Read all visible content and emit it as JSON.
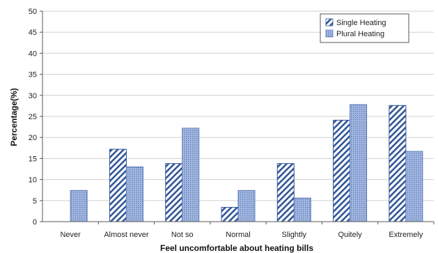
{
  "chart_data": {
    "type": "bar",
    "categories": [
      "Never",
      "Almost never",
      "Not so",
      "Normal",
      "Slightly",
      "Quitely",
      "Extremely"
    ],
    "series": [
      {
        "name": "Single Heating",
        "values": [
          0,
          17.2,
          13.8,
          3.4,
          13.8,
          24.1,
          27.6
        ],
        "color": "#2f5597",
        "pattern": "diagonal-stripes"
      },
      {
        "name": "Plural Heating",
        "values": [
          7.4,
          13.0,
          22.2,
          7.4,
          5.6,
          27.8,
          16.7
        ],
        "color": "#6e8fc9",
        "pattern": "dots"
      }
    ],
    "title": "",
    "xlabel": "Feel uncomfortable about heating bills",
    "ylabel": "Percentage(%)",
    "ylim": [
      0,
      50
    ],
    "yticks": [
      0,
      5,
      10,
      15,
      20,
      25,
      30,
      35,
      40,
      45,
      50
    ],
    "grid": true,
    "legend": "top-right"
  }
}
